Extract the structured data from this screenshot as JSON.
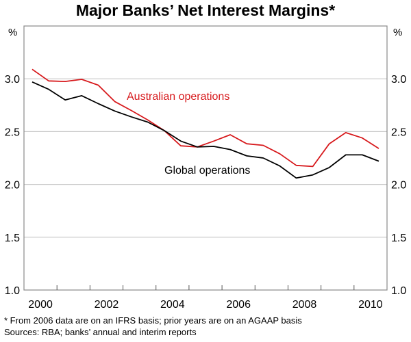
{
  "chart_data": {
    "type": "line",
    "title": "Major Banks’ Net Interest Margins*",
    "ylabel_left": "%",
    "ylabel_right": "%",
    "xlim": [
      2000,
      2011
    ],
    "ylim": [
      1.0,
      3.5
    ],
    "yticks": [
      1.0,
      1.5,
      2.0,
      2.5,
      3.0
    ],
    "ytick_labels": [
      "1.0",
      "1.5",
      "2.0",
      "2.5",
      "3.0"
    ],
    "xtick_labels": [
      {
        "year": 2000,
        "label": "2000"
      },
      {
        "year": 2002,
        "label": "2002"
      },
      {
        "year": 2004,
        "label": "2004"
      },
      {
        "year": 2006,
        "label": "2006"
      },
      {
        "year": 2008,
        "label": "2008"
      },
      {
        "year": 2010,
        "label": "2010"
      }
    ],
    "grid": true,
    "x": [
      2000.25,
      2000.75,
      2001.25,
      2001.75,
      2002.25,
      2002.75,
      2003.25,
      2003.75,
      2004.25,
      2004.75,
      2005.25,
      2005.75,
      2006.25,
      2006.75,
      2007.25,
      2007.75,
      2008.25,
      2008.75,
      2009.25,
      2009.75,
      2010.25,
      2010.75
    ],
    "series": [
      {
        "name": "Australian operations",
        "color": "#d7191c",
        "values": [
          3.09,
          2.98,
          2.975,
          2.995,
          2.94,
          2.785,
          2.7,
          2.61,
          2.51,
          2.365,
          2.355,
          2.41,
          2.47,
          2.385,
          2.37,
          2.29,
          2.18,
          2.17,
          2.385,
          2.49,
          2.44,
          2.34
        ]
      },
      {
        "name": "Global operations",
        "color": "#000000",
        "values": [
          2.97,
          2.9,
          2.8,
          2.84,
          2.765,
          2.695,
          2.64,
          2.59,
          2.51,
          2.41,
          2.355,
          2.36,
          2.33,
          2.27,
          2.25,
          2.175,
          2.06,
          2.09,
          2.16,
          2.28,
          2.28,
          2.22
        ]
      }
    ],
    "annotations": [
      "Australian operations",
      "Global operations"
    ]
  },
  "footnotes": {
    "note": "*   From 2006 data are on an IFRS basis; prior years are on an AGAAP basis",
    "sources": "Sources: RBA; banks’ annual and interim reports"
  }
}
